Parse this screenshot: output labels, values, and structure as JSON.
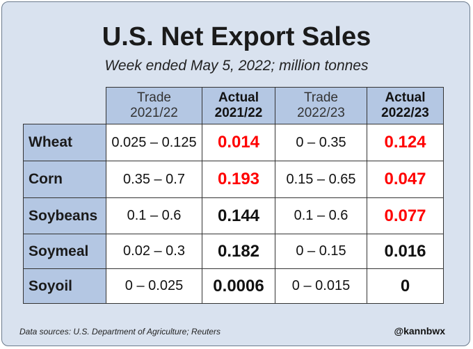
{
  "title": "U.S. Net Export Sales",
  "subtitle": "Week ended May 5, 2022; million tonnes",
  "colors": {
    "background": "#d9e2ef",
    "header_fill": "#b4c7e3",
    "highlight": "#ff0000",
    "normal": "#111111"
  },
  "chart_data": {
    "type": "table",
    "columns": [
      {
        "line1": "Trade",
        "line2": "2021/22",
        "bold": false
      },
      {
        "line1": "Actual",
        "line2": "2021/22",
        "bold": true
      },
      {
        "line1": "Trade",
        "line2": "2022/23",
        "bold": false
      },
      {
        "line1": "Actual",
        "line2": "2022/23",
        "bold": true
      }
    ],
    "rows": [
      {
        "label": "Wheat",
        "trade_2122": "0.025 – 0.125",
        "actual_2122": "0.014",
        "actual_2122_red": true,
        "trade_2223": "0 – 0.35",
        "actual_2223": "0.124",
        "actual_2223_red": true
      },
      {
        "label": "Corn",
        "trade_2122": "0.35 – 0.7",
        "actual_2122": "0.193",
        "actual_2122_red": true,
        "trade_2223": "0.15 – 0.65",
        "actual_2223": "0.047",
        "actual_2223_red": true
      },
      {
        "label": "Soybeans",
        "trade_2122": "0.1 – 0.6",
        "actual_2122": "0.144",
        "actual_2122_red": false,
        "trade_2223": "0.1 – 0.6",
        "actual_2223": "0.077",
        "actual_2223_red": true
      },
      {
        "label": "Soymeal",
        "trade_2122": "0.02 – 0.3",
        "actual_2122": "0.182",
        "actual_2122_red": false,
        "trade_2223": "0 – 0.15",
        "actual_2223": "0.016",
        "actual_2223_red": false
      },
      {
        "label": "Soyoil",
        "trade_2122": "0 – 0.025",
        "actual_2122": "0.0006",
        "actual_2122_red": false,
        "trade_2223": "0 – 0.015",
        "actual_2223": "0",
        "actual_2223_red": false
      }
    ]
  },
  "footer": {
    "source": "Data sources: U.S. Department of Agriculture; Reuters",
    "handle": "@kannbwx"
  }
}
